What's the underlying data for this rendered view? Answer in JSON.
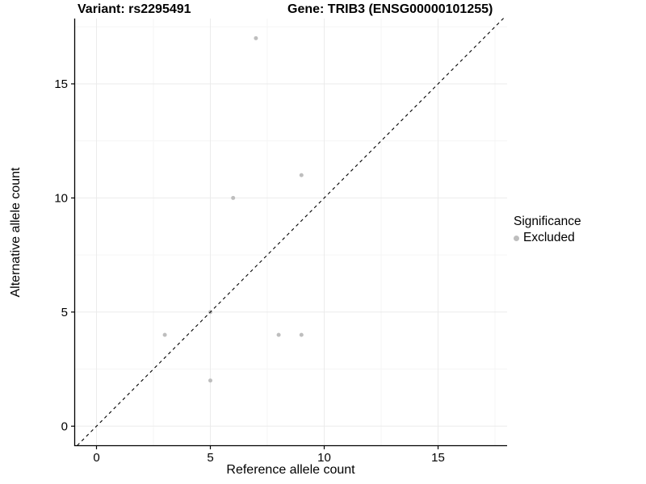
{
  "titles": {
    "left": "Variant: rs2295491",
    "right": "Gene: TRIB3 (ENSG00000101255)"
  },
  "legend": {
    "title": "Significance",
    "items": [
      {
        "label": "Excluded",
        "color": "#bebebe"
      }
    ]
  },
  "chart_data": {
    "type": "scatter",
    "title": "Variant: rs2295491 / Gene: TRIB3 (ENSG00000101255)",
    "xlabel": "Reference allele count",
    "ylabel": "Alternative allele count",
    "xlim": [
      -0.9,
      18.0
    ],
    "ylim": [
      -0.85,
      17.9
    ],
    "x_ticks": [
      0,
      5,
      10,
      15
    ],
    "y_ticks": [
      0,
      5,
      10,
      15
    ],
    "x_minor_ticks": [
      2.5,
      7.5,
      12.5,
      17.5
    ],
    "y_minor_ticks": [
      2.5,
      7.5,
      12.5,
      17.5
    ],
    "grid": true,
    "legend_position": "right",
    "series": [
      {
        "name": "Excluded",
        "color": "#bebebe",
        "points": [
          [
            3,
            4
          ],
          [
            5,
            2
          ],
          [
            5,
            5
          ],
          [
            6,
            10
          ],
          [
            7,
            17
          ],
          [
            8,
            4
          ],
          [
            9,
            4
          ],
          [
            9,
            11
          ]
        ]
      }
    ],
    "reference_line": {
      "type": "identity",
      "equation": "y = x",
      "style": "dashed",
      "color": "#000000"
    }
  },
  "colors": {
    "background": "#ffffff",
    "axis": "#000000",
    "grid_major": "#ebebeb",
    "grid_minor": "#f5f5f5",
    "point": "#bebebe",
    "text": "#000000"
  }
}
